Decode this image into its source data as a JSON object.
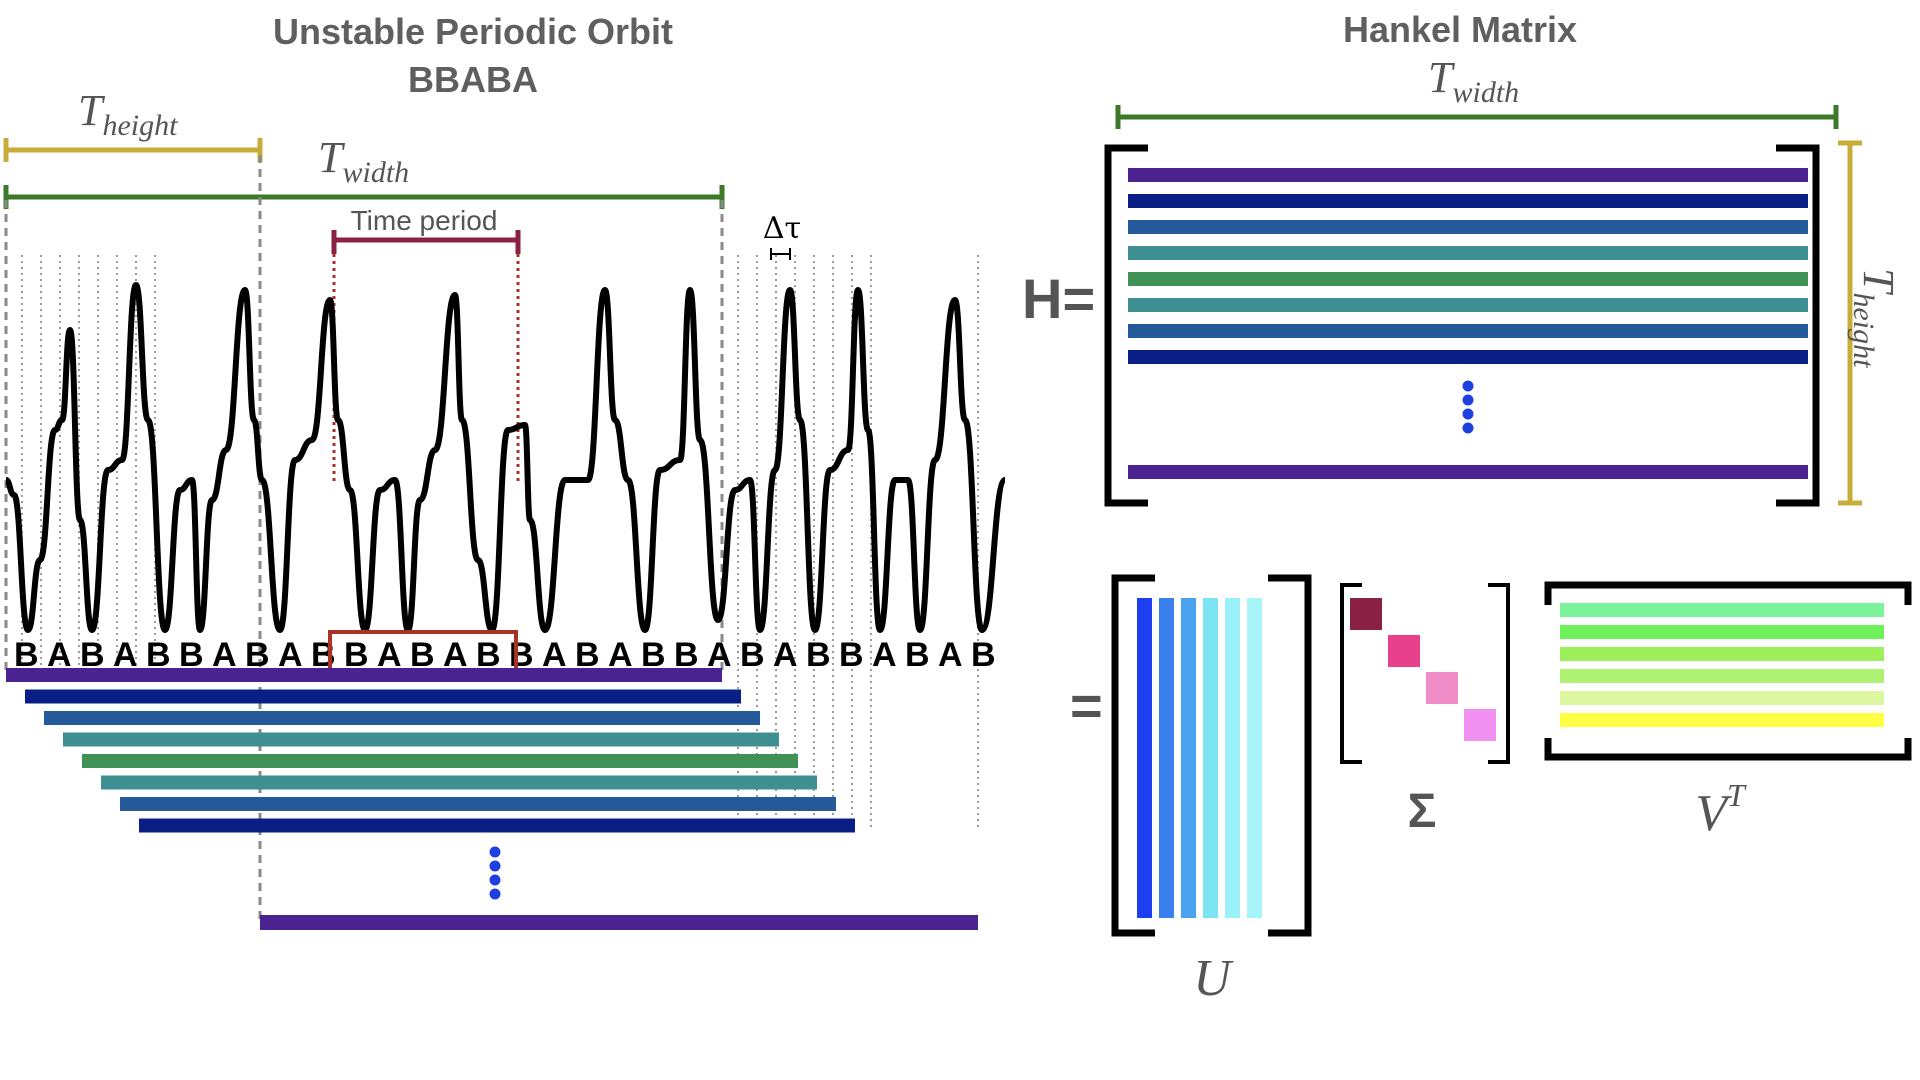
{
  "left": {
    "title_line1": "Unstable Periodic Orbit",
    "title_line2": "BBABA",
    "t_height": {
      "base": "T",
      "sub": "height"
    },
    "t_width": {
      "base": "T",
      "sub": "width"
    },
    "time_period_label": "Time period",
    "delta_tau_label": "Δτ",
    "symbols": [
      "B",
      "A",
      "B",
      "A",
      "B",
      "B",
      "A",
      "B",
      "A",
      "B",
      "B",
      "A",
      "B",
      "A",
      "B",
      "B",
      "A",
      "B",
      "A",
      "B",
      "B",
      "A",
      "B",
      "A",
      "B",
      "B",
      "A",
      "B",
      "A",
      "B"
    ]
  },
  "right": {
    "title": "Hankel Matrix",
    "t_width": {
      "base": "T",
      "sub": "width"
    },
    "t_height": {
      "base": "T",
      "sub": "height"
    },
    "h_label": "H=",
    "equals_label": "=",
    "u_label": "U",
    "sigma_label": "Σ",
    "vt_label": {
      "base": "V",
      "sup": "T"
    }
  },
  "colors": {
    "height_bar": "#c8ac3a",
    "width_bar": "#3c7a2a",
    "time_period": "#8a2145",
    "highlight_box": "#a93226",
    "dots": "#1f3fe0",
    "rows": [
      "#4a2391",
      "#0a1f86",
      "#245a9a",
      "#3d8f92",
      "#3f9155",
      "#3d8f92",
      "#245a9a",
      "#0a1f86"
    ],
    "last_row": "#4a2391",
    "u_cols": [
      "#1d3ff0",
      "#3a7ff0",
      "#4aa2f0",
      "#7de4f4",
      "#9af1f7",
      "#a8f5f9"
    ],
    "sigma": [
      "#8a2145",
      "#e8408a",
      "#f08cc8",
      "#f090f0"
    ],
    "vt_rows": [
      "#7cf59a",
      "#6ef05a",
      "#9ef05a",
      "#aef070",
      "#dcf7a0",
      "#ffff44"
    ]
  }
}
